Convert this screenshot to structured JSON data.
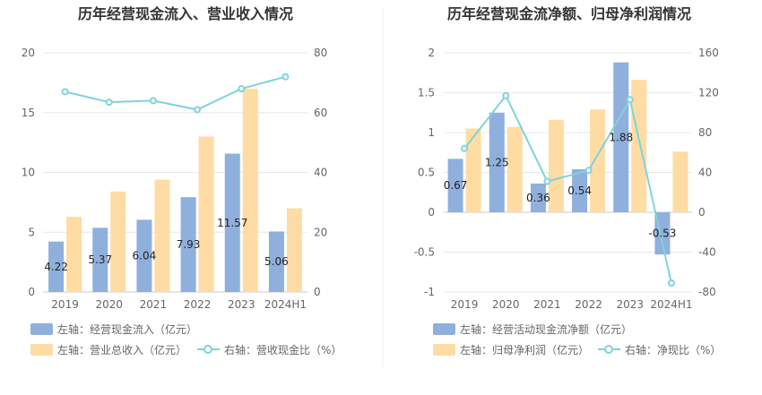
{
  "colors": {
    "bar_primary": "#8fb0dc",
    "bar_secondary": "#ffdca3",
    "line": "#7fd3dc",
    "grid": "#e8e8e8",
    "axis_text": "#666666",
    "title_text": "#333333",
    "divider": "#eeeeee"
  },
  "chart_data": [
    {
      "type": "bar+line",
      "title": "历年经营现金流入、营业收入情况",
      "categories": [
        "2019",
        "2020",
        "2021",
        "2022",
        "2023",
        "2024H1"
      ],
      "left_axis": {
        "min": 0,
        "max": 20,
        "ticks": [
          "0",
          "5",
          "10",
          "15",
          "20"
        ]
      },
      "right_axis": {
        "min": 0,
        "max": 80,
        "ticks": [
          "0",
          "20",
          "40",
          "60",
          "80"
        ]
      },
      "series": [
        {
          "name": "左轴：经营现金流入（亿元）",
          "kind": "bar",
          "axis": "left",
          "values": [
            4.22,
            5.37,
            6.04,
            7.93,
            11.57,
            5.06
          ],
          "labels": [
            "4.22",
            "5.37",
            "6.04",
            "7.93",
            "11.57",
            "5.06"
          ]
        },
        {
          "name": "左轴：营业总收入（亿元）",
          "kind": "bar",
          "axis": "left",
          "values": [
            6.3,
            8.4,
            9.4,
            13.0,
            17.0,
            7.0
          ]
        },
        {
          "name": "右轴：营收现金比（%）",
          "kind": "line",
          "axis": "right",
          "values": [
            67,
            63.5,
            64,
            61,
            68,
            72
          ]
        }
      ]
    },
    {
      "type": "bar+line",
      "title": "历年经营现金流净额、归母净利润情况",
      "categories": [
        "2019",
        "2020",
        "2021",
        "2022",
        "2023",
        "2024H1"
      ],
      "left_axis": {
        "min": -1,
        "max": 2,
        "ticks": [
          "-1",
          "-0.5",
          "0",
          "0.5",
          "1",
          "1.5",
          "2"
        ]
      },
      "right_axis": {
        "min": -80,
        "max": 160,
        "ticks": [
          "-80",
          "-40",
          "0",
          "40",
          "80",
          "120",
          "160"
        ]
      },
      "series": [
        {
          "name": "左轴：经营活动现金流净额（亿元）",
          "kind": "bar",
          "axis": "left",
          "values": [
            0.67,
            1.25,
            0.36,
            0.54,
            1.88,
            -0.53
          ],
          "labels": [
            "0.67",
            "1.25",
            "0.36",
            "0.54",
            "1.88",
            "-0.53"
          ]
        },
        {
          "name": "左轴：归母净利润（亿元）",
          "kind": "bar",
          "axis": "left",
          "values": [
            1.05,
            1.07,
            1.16,
            1.29,
            1.66,
            0.76
          ]
        },
        {
          "name": "右轴：净现比（%）",
          "kind": "line",
          "axis": "right",
          "values": [
            64,
            117,
            31,
            42,
            113,
            -71
          ]
        }
      ]
    }
  ]
}
